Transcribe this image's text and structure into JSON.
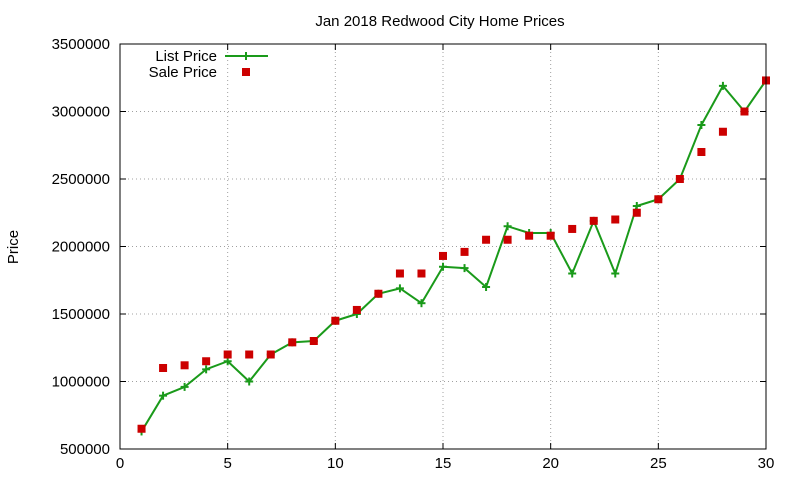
{
  "chart_data": {
    "type": "line",
    "title": "Jan 2018 Redwood City Home Prices",
    "xlabel": "",
    "ylabel": "Price",
    "xlim": [
      0,
      30
    ],
    "ylim": [
      500000,
      3500000
    ],
    "xticks": [
      0,
      5,
      10,
      15,
      20,
      25,
      30
    ],
    "yticks": [
      500000,
      1000000,
      1500000,
      2000000,
      2500000,
      3000000,
      3500000
    ],
    "grid": true,
    "legend_position": "top-left",
    "series": [
      {
        "name": "List Price",
        "style": "line-with-plus-markers",
        "color": "#1a9a1a",
        "x": [
          1,
          2,
          3,
          4,
          5,
          6,
          7,
          8,
          9,
          10,
          11,
          12,
          13,
          14,
          15,
          16,
          17,
          18,
          19,
          20,
          21,
          22,
          23,
          24,
          25,
          26,
          27,
          28,
          29,
          30
        ],
        "values": [
          630000,
          895000,
          960000,
          1090000,
          1150000,
          1000000,
          1200000,
          1290000,
          1300000,
          1450000,
          1500000,
          1650000,
          1690000,
          1580000,
          1850000,
          1840000,
          1700000,
          2150000,
          2100000,
          2100000,
          1800000,
          2190000,
          1800000,
          2300000,
          2350000,
          2500000,
          2900000,
          3190000,
          3000000,
          3230000
        ]
      },
      {
        "name": "Sale Price",
        "style": "square-markers",
        "color": "#cc0000",
        "x": [
          1,
          2,
          3,
          4,
          5,
          6,
          7,
          8,
          9,
          10,
          11,
          12,
          13,
          14,
          15,
          16,
          17,
          18,
          19,
          20,
          21,
          22,
          23,
          24,
          25,
          26,
          27,
          28,
          29,
          30
        ],
        "values": [
          650000,
          1100000,
          1120000,
          1150000,
          1200000,
          1200000,
          1200000,
          1290000,
          1300000,
          1450000,
          1530000,
          1650000,
          1800000,
          1800000,
          1930000,
          1960000,
          2050000,
          2050000,
          2080000,
          2080000,
          2130000,
          2190000,
          2200000,
          2250000,
          2350000,
          2500000,
          2700000,
          2850000,
          3000000,
          3230000
        ]
      }
    ]
  }
}
